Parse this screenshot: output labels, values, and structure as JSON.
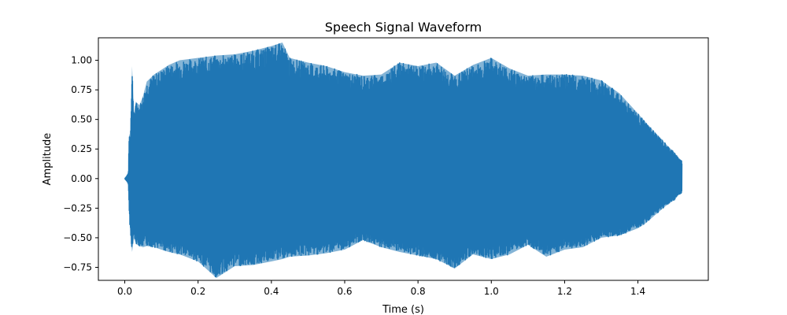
{
  "chart_data": {
    "type": "line",
    "title": "Speech Signal Waveform",
    "xlabel": "Time (s)",
    "ylabel": "Amplitude",
    "xlim": [
      -0.072,
      1.592
    ],
    "ylim": [
      -0.86,
      1.19
    ],
    "xticks": [
      0.0,
      0.2,
      0.4,
      0.6,
      0.8,
      1.0,
      1.2,
      1.4
    ],
    "xtick_labels": [
      "0.0",
      "0.2",
      "0.4",
      "0.6",
      "0.8",
      "1.0",
      "1.2",
      "1.4"
    ],
    "yticks": [
      -0.75,
      -0.5,
      -0.25,
      0.0,
      0.25,
      0.5,
      0.75,
      1.0
    ],
    "ytick_labels": [
      "−0.75",
      "−0.50",
      "−0.25",
      "0.00",
      "0.25",
      "0.50",
      "0.75",
      "1.00"
    ],
    "grid": false,
    "series": [
      {
        "color": "#1f77b4",
        "envelope": {
          "x": [
            0.0,
            0.005,
            0.01,
            0.012,
            0.015,
            0.02,
            0.025,
            0.03,
            0.04,
            0.05,
            0.06,
            0.08,
            0.1,
            0.12,
            0.15,
            0.2,
            0.25,
            0.3,
            0.35,
            0.4,
            0.43,
            0.45,
            0.5,
            0.55,
            0.6,
            0.65,
            0.7,
            0.75,
            0.8,
            0.85,
            0.9,
            0.95,
            1.0,
            1.05,
            1.1,
            1.15,
            1.2,
            1.25,
            1.3,
            1.35,
            1.4,
            1.42,
            1.45,
            1.48,
            1.5,
            1.51,
            1.52
          ],
          "upper": [
            0.0,
            0.02,
            0.05,
            0.38,
            0.35,
            0.95,
            0.55,
            0.65,
            0.62,
            0.7,
            0.82,
            0.88,
            0.92,
            0.96,
            1.0,
            1.02,
            1.04,
            1.05,
            1.08,
            1.12,
            1.15,
            1.02,
            0.98,
            0.95,
            0.9,
            0.87,
            0.88,
            0.98,
            0.95,
            0.98,
            0.87,
            0.96,
            1.02,
            0.93,
            0.87,
            0.88,
            0.88,
            0.87,
            0.83,
            0.72,
            0.55,
            0.48,
            0.38,
            0.28,
            0.22,
            0.18,
            0.15
          ],
          "lower": [
            0.0,
            -0.02,
            -0.05,
            -0.28,
            -0.45,
            -0.62,
            -0.5,
            -0.55,
            -0.57,
            -0.58,
            -0.57,
            -0.58,
            -0.6,
            -0.62,
            -0.64,
            -0.7,
            -0.84,
            -0.74,
            -0.73,
            -0.7,
            -0.68,
            -0.66,
            -0.65,
            -0.63,
            -0.6,
            -0.52,
            -0.58,
            -0.62,
            -0.65,
            -0.68,
            -0.76,
            -0.64,
            -0.68,
            -0.64,
            -0.56,
            -0.66,
            -0.6,
            -0.58,
            -0.5,
            -0.48,
            -0.42,
            -0.38,
            -0.3,
            -0.22,
            -0.18,
            -0.14,
            -0.12
          ]
        }
      }
    ]
  }
}
